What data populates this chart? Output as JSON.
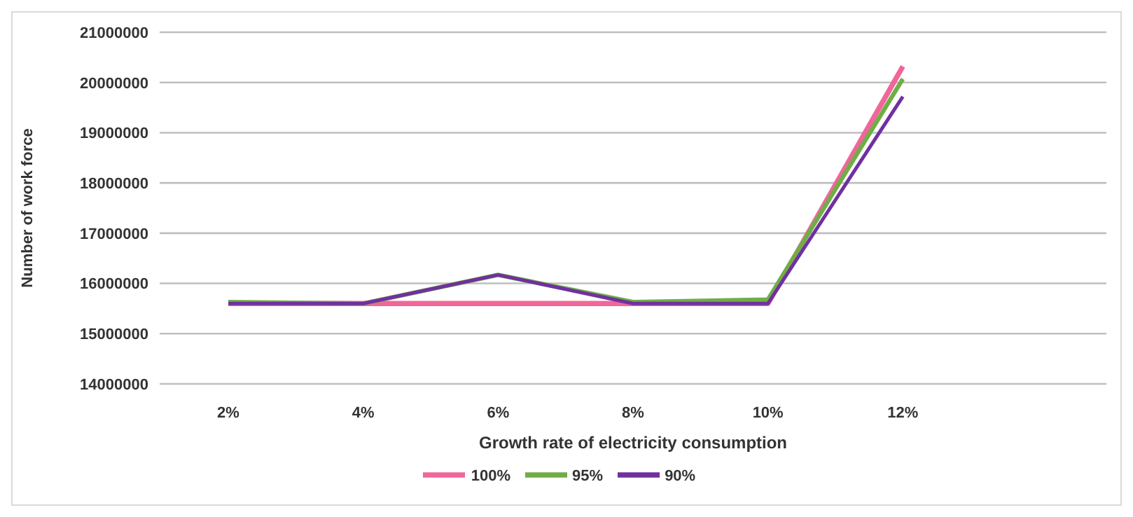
{
  "chart_data": {
    "type": "line",
    "xlabel": "Growth rate of electricity consumption",
    "ylabel": "Number of work force",
    "categories": [
      "2%",
      "4%",
      "6%",
      "8%",
      "10%",
      "12%",
      null
    ],
    "series": [
      {
        "name": "100%",
        "color": "#f0669a",
        "values": [
          15600000,
          15600000,
          15600000,
          15600000,
          15600000,
          20320000,
          null
        ]
      },
      {
        "name": "95%",
        "color": "#70ad47",
        "values": [
          15630000,
          15600000,
          16170000,
          15630000,
          15680000,
          20070000,
          null
        ]
      },
      {
        "name": "90%",
        "color": "#7030a0",
        "values": [
          15600000,
          15600000,
          16170000,
          15600000,
          15600000,
          19720000,
          null
        ]
      }
    ],
    "ylim": [
      14000000,
      21000000
    ],
    "yticks": [
      14000000,
      15000000,
      16000000,
      17000000,
      18000000,
      19000000,
      20000000,
      21000000
    ],
    "grid": "y",
    "legend": "bottom",
    "marker": "none",
    "line_style": "solid"
  }
}
